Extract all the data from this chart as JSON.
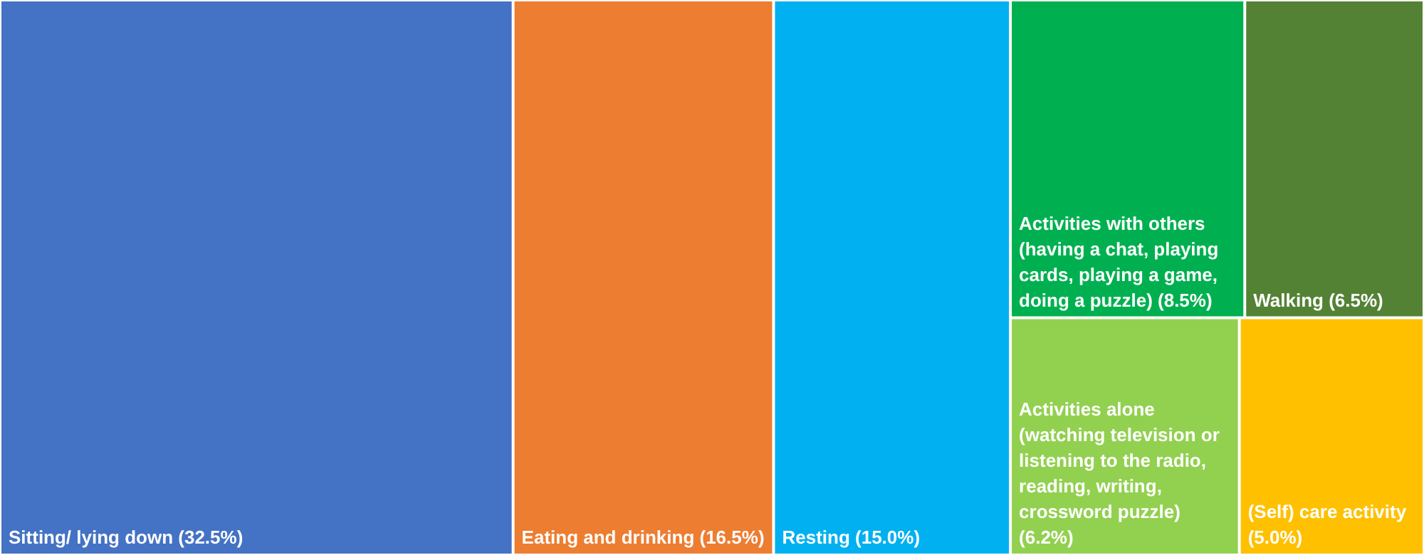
{
  "chart_data": {
    "type": "other",
    "categories": [
      "Sitting/ lying down",
      "Eating and drinking",
      "Resting",
      "Activities with others (having a chat, playing cards, playing a game, doing a puzzle)",
      "Walking",
      "Activities alone (watching television or listening to the radio, reading, writing, crossword puzzle)",
      "(Self) care activity"
    ],
    "value_labels": [
      "(32.5%)",
      "(16.5%)",
      "(15.0%)",
      "(8.5%)",
      "(6.5%)",
      "(6.2%)",
      "(5.0%)"
    ],
    "values": [
      32.5,
      16.5,
      15.0,
      8.5,
      6.5,
      6.2,
      5.0
    ],
    "colors": [
      "#4472c4",
      "#ed7d31",
      "#00b0f0",
      "#00b050",
      "#548235",
      "#92d050",
      "#ffc000"
    ]
  }
}
